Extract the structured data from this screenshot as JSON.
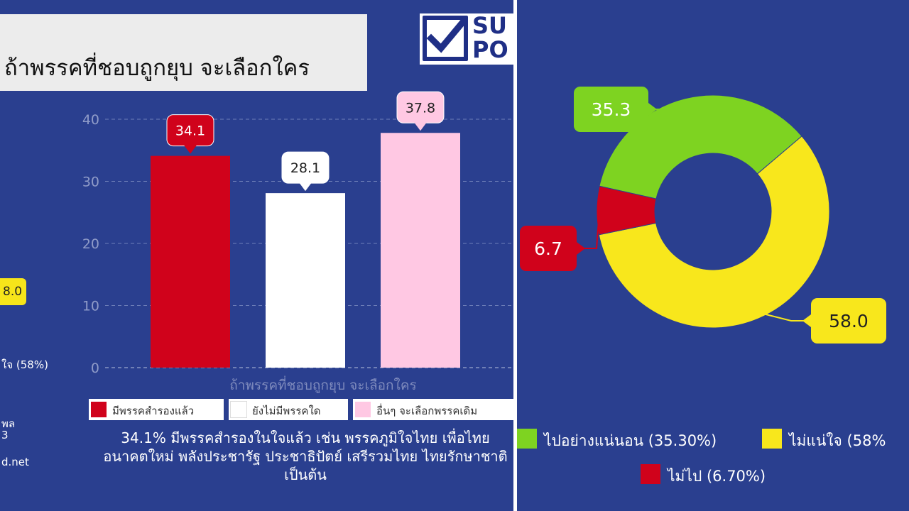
{
  "left_panel": {
    "title": "ถ้าพรรคที่ชอบถูกยุบ จะเลือกใคร",
    "logo_text_line1": "SU",
    "logo_text_line2": "PO",
    "caption": "34.1% มีพรรคสำรองในใจแล้ว เช่น พรรคภูมิใจไทย เพื่อไทย อนาคตใหม่ พลังประชารัฐ ประชาธิปัตย์ เสรีรวมไทย ไทยรักษาชาติ เป็นต้น",
    "edge_fragments": {
      "badge": "8.0",
      "line1": "ใจ (58%)",
      "line2": "พล",
      "line3": "3",
      "line4": "d.net"
    }
  },
  "chart_data": [
    {
      "type": "bar",
      "xlabel": "ถ้าพรรคที่ชอบถูกยุบ จะเลือกใคร",
      "ylim": [
        0,
        40
      ],
      "yticks": [
        0,
        10,
        20,
        30,
        40
      ],
      "grid": true,
      "legend_position": "bottom",
      "series": [
        {
          "name": "มีพรรคสำรองแล้ว",
          "value": 34.1,
          "color": "#d0021b",
          "label": "34.1"
        },
        {
          "name": "ยังไม่มีพรรคใด",
          "value": 28.1,
          "color": "#ffffff",
          "label": "28.1"
        },
        {
          "name": "อื่นๆ จะเลือกพรรคเดิม",
          "value": 37.8,
          "color": "#ffc8e3",
          "label": "37.8"
        }
      ]
    },
    {
      "type": "pie",
      "donut": true,
      "legend_position": "bottom",
      "slices": [
        {
          "name": "ไปอย่างแน่นอน",
          "value": 35.3,
          "color": "#7ed321",
          "label": "35.3",
          "legend": "ไปอย่างแน่นอน (35.30%)"
        },
        {
          "name": "ไม่แน่ใจ",
          "value": 58.0,
          "color": "#f8e71c",
          "label": "58.0",
          "legend": "ไม่แน่ใจ (58%"
        },
        {
          "name": "ไม่ไป",
          "value": 6.7,
          "color": "#d0021b",
          "label": "6.7",
          "legend": "ไม่ไป (6.70%)"
        }
      ]
    }
  ]
}
